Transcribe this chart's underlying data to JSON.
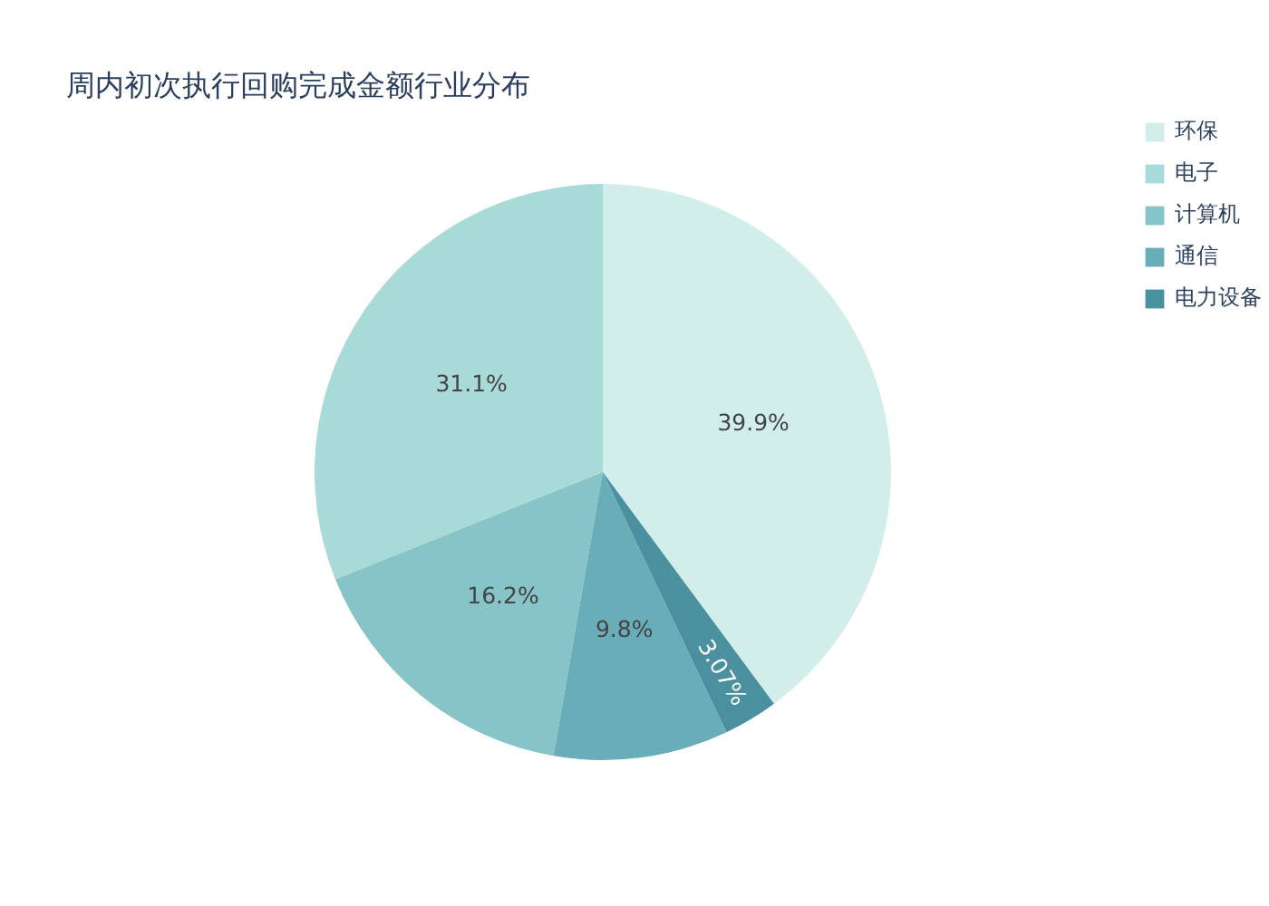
{
  "chart_data": {
    "type": "pie",
    "title": "周内初次执行回购完成金额行业分布",
    "categories": [
      "环保",
      "电子",
      "计算机",
      "通信",
      "电力设备"
    ],
    "values": [
      39.9,
      31.1,
      16.2,
      9.8,
      3.07
    ],
    "colors": [
      "#d2eeea",
      "#a8dad8",
      "#87c4c8",
      "#68adb8",
      "#4a909f"
    ],
    "value_labels": [
      "39.9%",
      "31.1%",
      "16.2%",
      "9.8%",
      "3.07%"
    ],
    "legend": "top right"
  }
}
